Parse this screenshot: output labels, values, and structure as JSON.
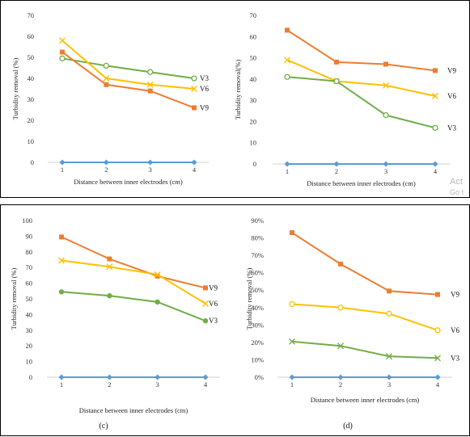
{
  "colors": {
    "V3": "#70ad47",
    "V6": "#ffc000",
    "V9": "#ed7d31",
    "baseline": "#5b9bd5"
  },
  "panel_letters": [
    "",
    "",
    "(c)",
    "(d)"
  ],
  "watermark": {
    "line1": "Act",
    "line2": "Go t"
  },
  "chart_data": [
    {
      "type": "line",
      "title": "",
      "xlabel": "Distance between inner electrodes (cm)",
      "ylabel": "Turbidity removal (%)",
      "x": [
        1,
        2,
        3,
        4
      ],
      "ylim": [
        0,
        70
      ],
      "ystep": 10,
      "ytick_suffix": "",
      "grid": false,
      "series": [
        {
          "name": "V3",
          "marker": "circle-open",
          "values": [
            49.5,
            46,
            43,
            40
          ]
        },
        {
          "name": "V6",
          "marker": "x",
          "values": [
            58,
            40,
            37,
            35
          ]
        },
        {
          "name": "V9",
          "marker": "square",
          "values": [
            52.5,
            37,
            34,
            26
          ]
        },
        {
          "name": "",
          "marker": "diamond",
          "values": [
            0,
            0,
            0,
            0
          ],
          "role": "baseline"
        }
      ]
    },
    {
      "type": "line",
      "title": "",
      "xlabel": "Distance between inner electrodes (cm)",
      "ylabel": "Turbidity removal(%)",
      "x": [
        1,
        2,
        3,
        4
      ],
      "ylim": [
        0,
        70
      ],
      "ystep": 10,
      "ytick_suffix": "",
      "grid": false,
      "series": [
        {
          "name": "V9",
          "marker": "square",
          "values": [
            63,
            48,
            47,
            44
          ]
        },
        {
          "name": "V6",
          "marker": "x",
          "values": [
            49,
            39,
            37,
            32
          ]
        },
        {
          "name": "V3",
          "marker": "circle-open",
          "values": [
            41,
            39,
            23,
            17
          ]
        },
        {
          "name": "",
          "marker": "diamond",
          "values": [
            0,
            0,
            0,
            0
          ],
          "role": "baseline"
        }
      ]
    },
    {
      "type": "line",
      "title": "",
      "xlabel": "Distance between inner electrodes (cm)",
      "ylabel": "Turbidity removal (%)",
      "x": [
        1,
        2,
        3,
        4
      ],
      "ylim": [
        0,
        100
      ],
      "ystep": 10,
      "ytick_suffix": "",
      "grid": false,
      "series": [
        {
          "name": "V9",
          "marker": "square",
          "values": [
            89.5,
            75.5,
            64.5,
            57
          ]
        },
        {
          "name": "V6",
          "marker": "x",
          "values": [
            74.5,
            70.5,
            65.5,
            47
          ]
        },
        {
          "name": "V3",
          "marker": "circle-filled",
          "values": [
            54.5,
            52,
            48,
            36
          ]
        },
        {
          "name": "",
          "marker": "diamond",
          "values": [
            0,
            0,
            0,
            0
          ],
          "role": "baseline"
        }
      ]
    },
    {
      "type": "line",
      "title": "",
      "xlabel": "Distance between inner electrodes (cm)",
      "ylabel": "Turbidity removal (%)",
      "x": [
        1,
        2,
        3,
        4
      ],
      "ylim": [
        0,
        90
      ],
      "ystep": 10,
      "ytick_suffix": "%",
      "grid": false,
      "series": [
        {
          "name": "V9",
          "marker": "square",
          "values": [
            83,
            65,
            49.5,
            47.5
          ]
        },
        {
          "name": "V6",
          "marker": "circle-open",
          "values": [
            42,
            40,
            36.5,
            27
          ]
        },
        {
          "name": "V3",
          "marker": "x",
          "values": [
            20.5,
            18,
            12,
            11
          ]
        },
        {
          "name": "",
          "marker": "diamond",
          "values": [
            0,
            0,
            0,
            0
          ],
          "role": "baseline"
        }
      ]
    }
  ]
}
